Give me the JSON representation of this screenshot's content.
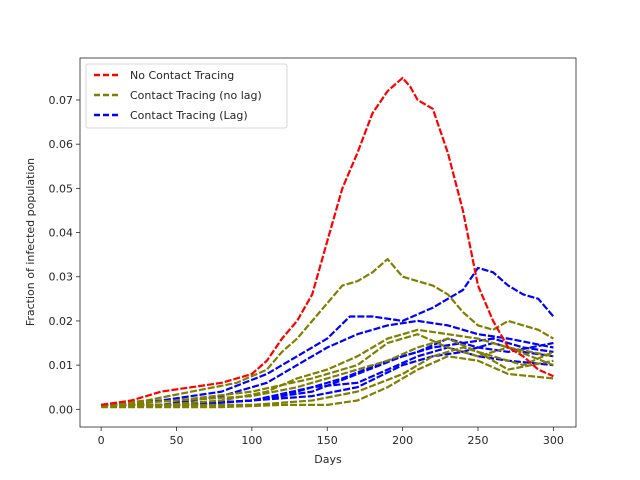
{
  "chart_data": {
    "type": "line",
    "xlabel": "Days",
    "ylabel": "Fraction of infected population",
    "xlim": [
      -14,
      315
    ],
    "ylim": [
      -0.004,
      0.0795
    ],
    "x_ticks": [
      0,
      50,
      100,
      150,
      200,
      250,
      300
    ],
    "y_ticks": [
      0.0,
      0.01,
      0.02,
      0.03,
      0.04,
      0.05,
      0.06,
      0.07
    ],
    "y_tick_labels": [
      "0.00",
      "0.01",
      "0.02",
      "0.03",
      "0.04",
      "0.05",
      "0.06",
      "0.07"
    ],
    "grid": false,
    "legend_position": "top-left",
    "legend": [
      {
        "label": "No Contact Tracing",
        "color": "#ff0000"
      },
      {
        "label": "Contact Tracing (no lag)",
        "color": "#808000"
      },
      {
        "label": "Contact Tracing (Lag)",
        "color": "#0000ff"
      }
    ],
    "series": [
      {
        "group": "No Contact Tracing",
        "color": "#ff0000",
        "x": [
          0,
          20,
          40,
          60,
          80,
          100,
          110,
          120,
          130,
          140,
          150,
          160,
          170,
          180,
          190,
          200,
          205,
          210,
          220,
          230,
          240,
          250,
          260,
          270,
          280,
          290,
          300
        ],
        "y": [
          0.001,
          0.002,
          0.004,
          0.005,
          0.006,
          0.008,
          0.011,
          0.016,
          0.02,
          0.026,
          0.038,
          0.05,
          0.058,
          0.067,
          0.072,
          0.075,
          0.073,
          0.07,
          0.068,
          0.058,
          0.045,
          0.028,
          0.02,
          0.014,
          0.012,
          0.009,
          0.0075
        ]
      },
      {
        "group": "Contact Tracing (no lag)",
        "color": "#808000",
        "x": [
          0,
          30,
          60,
          90,
          110,
          120,
          130,
          140,
          150,
          160,
          170,
          180,
          190,
          200,
          210,
          220,
          230,
          240,
          250,
          260,
          270,
          280,
          290,
          300
        ],
        "y": [
          0.001,
          0.002,
          0.004,
          0.006,
          0.009,
          0.013,
          0.016,
          0.02,
          0.024,
          0.028,
          0.029,
          0.031,
          0.034,
          0.03,
          0.029,
          0.028,
          0.026,
          0.022,
          0.019,
          0.018,
          0.02,
          0.019,
          0.018,
          0.016
        ]
      },
      {
        "group": "Contact Tracing (no lag)",
        "color": "#808000",
        "x": [
          0,
          40,
          80,
          110,
          130,
          150,
          170,
          190,
          210,
          230,
          250,
          270,
          300
        ],
        "y": [
          0.001,
          0.001,
          0.002,
          0.004,
          0.007,
          0.009,
          0.012,
          0.016,
          0.018,
          0.017,
          0.016,
          0.014,
          0.012
        ]
      },
      {
        "group": "Contact Tracing (no lag)",
        "color": "#808000",
        "x": [
          0,
          50,
          100,
          130,
          160,
          190,
          210,
          230,
          250,
          270,
          300
        ],
        "y": [
          0.001,
          0.002,
          0.003,
          0.005,
          0.008,
          0.011,
          0.014,
          0.016,
          0.013,
          0.009,
          0.011
        ]
      },
      {
        "group": "Contact Tracing (no lag)",
        "color": "#808000",
        "x": [
          0,
          60,
          100,
          140,
          170,
          200,
          220,
          240,
          260,
          280,
          300
        ],
        "y": [
          0.001,
          0.001,
          0.001,
          0.002,
          0.004,
          0.008,
          0.012,
          0.014,
          0.012,
          0.01,
          0.013
        ]
      },
      {
        "group": "Contact Tracing (no lag)",
        "color": "#808000",
        "x": [
          0,
          80,
          120,
          150,
          170,
          190,
          210,
          230,
          250,
          270,
          300
        ],
        "y": [
          0.0005,
          0.0005,
          0.001,
          0.001,
          0.002,
          0.005,
          0.009,
          0.012,
          0.011,
          0.008,
          0.007
        ]
      },
      {
        "group": "Contact Tracing (no lag)",
        "color": "#808000",
        "x": [
          0,
          50,
          100,
          140,
          170,
          190,
          210,
          230,
          250,
          270,
          300
        ],
        "y": [
          0.001,
          0.002,
          0.004,
          0.007,
          0.01,
          0.015,
          0.017,
          0.014,
          0.012,
          0.014,
          0.01
        ]
      },
      {
        "group": "Contact Tracing (Lag)",
        "color": "#0000ff",
        "x": [
          0,
          40,
          80,
          110,
          130,
          150,
          165,
          180,
          200,
          220,
          240,
          250,
          260,
          270,
          280,
          290,
          300
        ],
        "y": [
          0.001,
          0.002,
          0.004,
          0.008,
          0.012,
          0.016,
          0.021,
          0.021,
          0.02,
          0.023,
          0.027,
          0.032,
          0.031,
          0.028,
          0.026,
          0.025,
          0.021
        ]
      },
      {
        "group": "Contact Tracing (Lag)",
        "color": "#0000ff",
        "x": [
          0,
          40,
          80,
          110,
          130,
          150,
          170,
          190,
          210,
          230,
          250,
          270,
          300
        ],
        "y": [
          0.001,
          0.001,
          0.003,
          0.006,
          0.01,
          0.014,
          0.017,
          0.019,
          0.02,
          0.019,
          0.017,
          0.016,
          0.014
        ]
      },
      {
        "group": "Contact Tracing (Lag)",
        "color": "#0000ff",
        "x": [
          0,
          50,
          100,
          130,
          160,
          190,
          210,
          230,
          250,
          270,
          300
        ],
        "y": [
          0.001,
          0.001,
          0.002,
          0.004,
          0.007,
          0.011,
          0.013,
          0.016,
          0.014,
          0.013,
          0.015
        ]
      },
      {
        "group": "Contact Tracing (Lag)",
        "color": "#0000ff",
        "x": [
          0,
          50,
          100,
          140,
          170,
          190,
          210,
          230,
          250,
          270,
          300
        ],
        "y": [
          0.001,
          0.001,
          0.002,
          0.005,
          0.006,
          0.009,
          0.012,
          0.014,
          0.012,
          0.011,
          0.01
        ]
      },
      {
        "group": "Contact Tracing (Lag)",
        "color": "#0000ff",
        "x": [
          0,
          50,
          100,
          140,
          170,
          200,
          220,
          240,
          260,
          280,
          300
        ],
        "y": [
          0.001,
          0.001,
          0.002,
          0.003,
          0.005,
          0.01,
          0.012,
          0.013,
          0.015,
          0.013,
          0.012
        ]
      },
      {
        "group": "Contact Tracing (Lag)",
        "color": "#0000ff",
        "x": [
          0,
          60,
          100,
          140,
          170,
          200,
          220,
          240,
          260,
          280,
          300
        ],
        "y": [
          0.001,
          0.001,
          0.002,
          0.004,
          0.008,
          0.012,
          0.014,
          0.015,
          0.016,
          0.014,
          0.013
        ]
      }
    ]
  }
}
